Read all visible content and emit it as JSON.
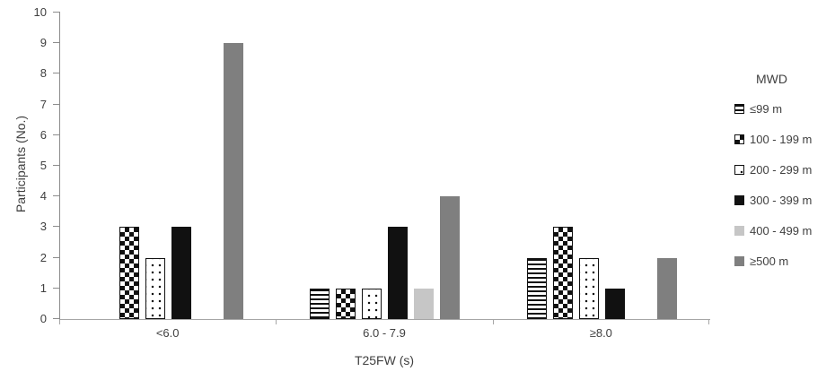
{
  "chart_data": {
    "type": "bar",
    "title": "",
    "xlabel": "T25FW (s)",
    "ylabel": "Participants (No.)",
    "ylim": [
      0,
      10
    ],
    "ytick_step": 1,
    "grid": false,
    "legend_title": "MWD",
    "legend_position": "right",
    "categories": [
      "<6.0",
      "6.0 - 7.9",
      "≥8.0"
    ],
    "series": [
      {
        "name": "≤99 m",
        "pattern": "hstripes",
        "values": [
          0,
          1,
          2
        ]
      },
      {
        "name": "100 - 199 m",
        "pattern": "checker",
        "values": [
          3,
          1,
          3
        ]
      },
      {
        "name": "200 - 299 m",
        "pattern": "dots",
        "values": [
          2,
          1,
          2
        ]
      },
      {
        "name": "300 - 399 m",
        "pattern": "solid-black",
        "values": [
          3,
          3,
          1
        ]
      },
      {
        "name": "400 - 499 m",
        "pattern": "solid-lightgray",
        "values": [
          0,
          1,
          0
        ]
      },
      {
        "name": "≥500 m",
        "pattern": "solid-darkgray",
        "values": [
          9,
          4,
          2
        ]
      }
    ],
    "colors": {
      "black": "#111111",
      "lightgray": "#c6c6c6",
      "darkgray": "#7f7f7f",
      "axis": "#8c8c8c",
      "text": "#404040"
    }
  }
}
